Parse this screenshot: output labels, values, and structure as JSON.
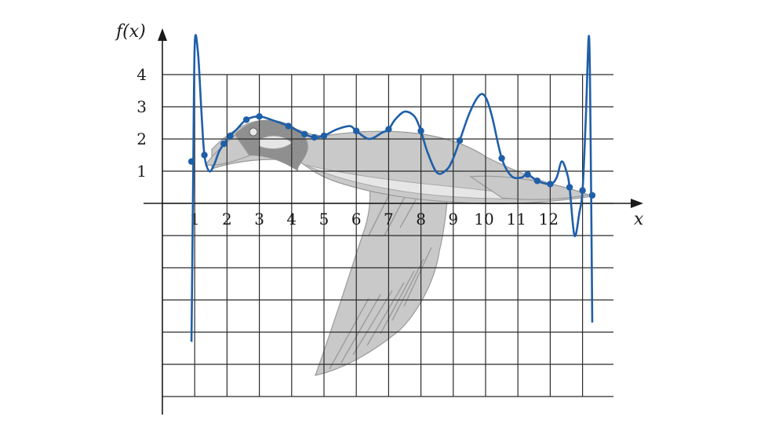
{
  "chart_data": {
    "type": "line",
    "title": "",
    "xlabel": "x",
    "ylabel": "f(x)",
    "xlim": [
      -1,
      13.3
    ],
    "ylim": [
      -6.5,
      5.2
    ],
    "x_ticks": [
      1,
      2,
      3,
      4,
      5,
      6,
      7,
      8,
      9,
      10,
      11,
      12
    ],
    "y_ticks": [
      1,
      2,
      3,
      4
    ],
    "grid": true,
    "background_image": "goose-in-flight",
    "colors": {
      "curve": "#1f5fa8",
      "grid": "#2b2b2b",
      "goose": "#c9c9c9"
    },
    "series": [
      {
        "kind": "interpolation-points",
        "x": [
          0.9,
          1.3,
          1.9,
          2.1,
          2.6,
          3.0,
          3.9,
          4.4,
          4.7,
          5.0,
          6.0,
          7.0,
          8.0,
          9.2,
          10.5,
          11.3,
          11.6,
          12.0,
          12.6,
          13.0,
          13.3
        ],
        "y": [
          1.3,
          1.5,
          1.85,
          2.1,
          2.6,
          2.7,
          2.4,
          2.15,
          2.05,
          2.1,
          2.25,
          2.3,
          2.25,
          1.95,
          1.4,
          0.9,
          0.7,
          0.6,
          0.5,
          0.4,
          0.25
        ]
      },
      {
        "kind": "interpolating-polynomial",
        "x": [
          0.9,
          0.95,
          1.0,
          1.1,
          1.2,
          1.3,
          1.45,
          1.6,
          1.75,
          1.9,
          2.1,
          2.3,
          2.6,
          3.0,
          3.5,
          3.9,
          4.4,
          4.7,
          5.0,
          5.4,
          5.8,
          6.0,
          6.4,
          6.8,
          7.0,
          7.2,
          7.5,
          7.8,
          8.0,
          8.2,
          8.5,
          8.8,
          9.0,
          9.2,
          9.5,
          9.8,
          10.0,
          10.2,
          10.5,
          10.8,
          11.1,
          11.3,
          11.6,
          12.0,
          12.2,
          12.35,
          12.5,
          12.6,
          12.75,
          12.9,
          13.0,
          13.1,
          13.2,
          13.25,
          13.3
        ],
        "y": [
          -4.3,
          0.5,
          4.9,
          4.7,
          3.0,
          1.5,
          1.0,
          1.2,
          1.6,
          1.85,
          2.1,
          2.3,
          2.6,
          2.7,
          2.55,
          2.4,
          2.15,
          2.05,
          2.1,
          2.3,
          2.4,
          2.25,
          2.0,
          2.2,
          2.3,
          2.6,
          2.85,
          2.7,
          2.25,
          1.6,
          0.95,
          1.05,
          1.4,
          1.95,
          2.8,
          3.35,
          3.3,
          2.7,
          1.4,
          0.85,
          0.8,
          0.9,
          0.7,
          0.6,
          0.8,
          1.3,
          1.0,
          0.5,
          -1.0,
          -0.3,
          0.4,
          2.6,
          5.2,
          2.0,
          -3.7
        ]
      }
    ]
  }
}
